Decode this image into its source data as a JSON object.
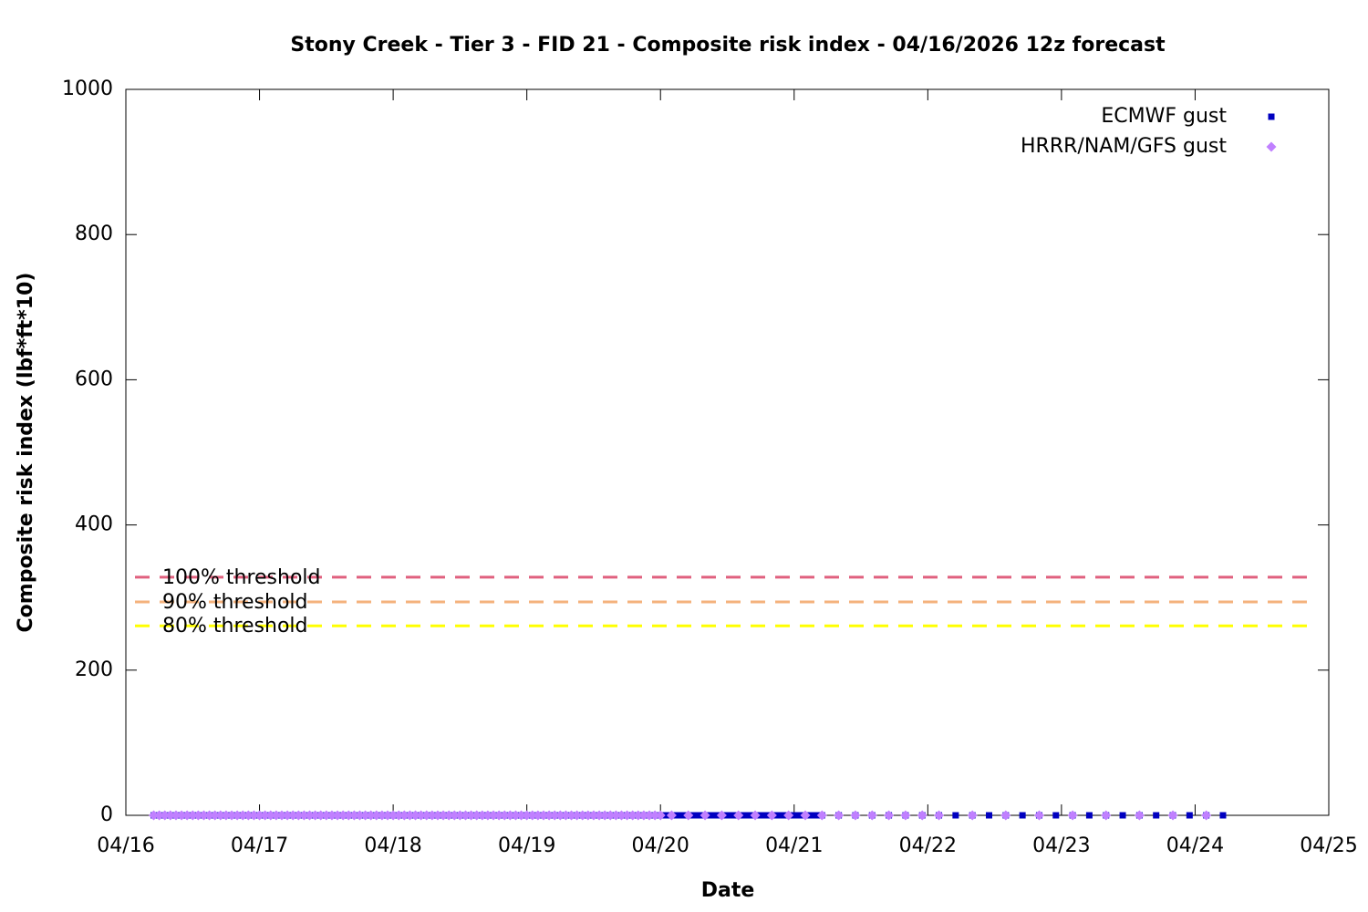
{
  "chart_data": {
    "type": "scatter",
    "title": "Stony Creek - Tier 3 - FID 21 - Composite risk index - 04/16/2026 12z forecast",
    "xlabel": "Date",
    "ylabel": "Composite risk index (lbf*ft*10)",
    "xlim": [
      0,
      216
    ],
    "xticks": [
      {
        "value": 0,
        "label": "04/16"
      },
      {
        "value": 24,
        "label": "04/17"
      },
      {
        "value": 48,
        "label": "04/18"
      },
      {
        "value": 72,
        "label": "04/19"
      },
      {
        "value": 96,
        "label": "04/20"
      },
      {
        "value": 120,
        "label": "04/21"
      },
      {
        "value": 144,
        "label": "04/22"
      },
      {
        "value": 168,
        "label": "04/23"
      },
      {
        "value": 192,
        "label": "04/24"
      },
      {
        "value": 216,
        "label": "04/25"
      }
    ],
    "ylim": [
      0,
      1000
    ],
    "yticks": [
      0,
      200,
      400,
      600,
      800,
      1000
    ],
    "legend": "upper right",
    "thresholds": [
      {
        "label": "100% threshold",
        "value": 328,
        "color": "#e0607e"
      },
      {
        "label": "90% threshold",
        "value": 294,
        "color": "#f4b27c"
      },
      {
        "label": "80% threshold",
        "value": 261,
        "color": "#ffff00"
      }
    ],
    "series": [
      {
        "name": "ECMWF gust",
        "color": "#0000c0",
        "marker": "square",
        "x": [
          5,
          6,
          7,
          8,
          9,
          10,
          11,
          12,
          13,
          14,
          15,
          16,
          17,
          18,
          19,
          20,
          21,
          22,
          23,
          24,
          25,
          26,
          27,
          28,
          29,
          30,
          31,
          32,
          33,
          34,
          35,
          36,
          37,
          38,
          39,
          40,
          41,
          42,
          43,
          44,
          45,
          46,
          47,
          48,
          49,
          50,
          51,
          52,
          53,
          54,
          55,
          56,
          57,
          58,
          59,
          60,
          61,
          62,
          63,
          64,
          65,
          66,
          67,
          68,
          69,
          70,
          71,
          72,
          73,
          74,
          75,
          76,
          77,
          78,
          79,
          80,
          81,
          82,
          83,
          84,
          85,
          86,
          87,
          88,
          89,
          90,
          91,
          92,
          93,
          94,
          95,
          96,
          97,
          98,
          99,
          100,
          101,
          102,
          103,
          104,
          105,
          106,
          107,
          108,
          109,
          110,
          111,
          112,
          113,
          114,
          115,
          116,
          117,
          118,
          119,
          120,
          121,
          122,
          123,
          124,
          125,
          128,
          131,
          134,
          137,
          140,
          143,
          146,
          149,
          152,
          155,
          158,
          161,
          164,
          167,
          170,
          173,
          176,
          179,
          182,
          185,
          188,
          191,
          194,
          197
        ],
        "values": [
          0,
          0,
          0,
          0,
          0,
          0,
          0,
          0,
          0,
          0,
          0,
          0,
          0,
          0,
          0,
          0,
          0,
          0,
          0,
          0,
          0,
          0,
          0,
          0,
          0,
          0,
          0,
          0,
          0,
          0,
          0,
          0,
          0,
          0,
          0,
          0,
          0,
          0,
          0,
          0,
          0,
          0,
          0,
          0,
          0,
          0,
          0,
          0,
          0,
          0,
          0,
          0,
          0,
          0,
          0,
          0,
          0,
          0,
          0,
          0,
          0,
          0,
          0,
          0,
          0,
          0,
          0,
          0,
          0,
          0,
          0,
          0,
          0,
          0,
          0,
          0,
          0,
          0,
          0,
          0,
          0,
          0,
          0,
          0,
          0,
          0,
          0,
          0,
          0,
          0,
          0,
          0,
          0,
          0,
          0,
          0,
          0,
          0,
          0,
          0,
          0,
          0,
          0,
          0,
          0,
          0,
          0,
          0,
          0,
          0,
          0,
          0,
          0,
          0,
          0,
          0,
          0,
          0,
          0,
          0,
          0,
          0,
          0,
          0,
          0,
          0,
          0,
          0,
          0,
          0,
          0,
          0,
          0,
          0,
          0,
          0,
          0,
          0,
          0,
          0,
          0,
          0,
          0,
          0,
          0
        ]
      },
      {
        "name": "HRRR/NAM/GFS gust",
        "color": "#c080ff",
        "marker": "diamond",
        "x": [
          5,
          6,
          7,
          8,
          9,
          10,
          11,
          12,
          13,
          14,
          15,
          16,
          17,
          18,
          19,
          20,
          21,
          22,
          23,
          24,
          25,
          26,
          27,
          28,
          29,
          30,
          31,
          32,
          33,
          34,
          35,
          36,
          37,
          38,
          39,
          40,
          41,
          42,
          43,
          44,
          45,
          46,
          47,
          48,
          49,
          50,
          51,
          52,
          53,
          54,
          55,
          56,
          57,
          58,
          59,
          60,
          61,
          62,
          63,
          64,
          65,
          66,
          67,
          68,
          69,
          70,
          71,
          72,
          73,
          74,
          75,
          76,
          77,
          78,
          79,
          80,
          81,
          82,
          83,
          84,
          85,
          86,
          87,
          88,
          89,
          90,
          91,
          92,
          93,
          94,
          95,
          96,
          98,
          101,
          104,
          107,
          110,
          113,
          116,
          119,
          122,
          125,
          128,
          131,
          134,
          137,
          140,
          143,
          146,
          152,
          158,
          164,
          170,
          176,
          182,
          188,
          194
        ],
        "values": [
          0,
          0,
          0,
          0,
          0,
          0,
          0,
          0,
          0,
          0,
          0,
          0,
          0,
          0,
          0,
          0,
          0,
          0,
          0,
          0,
          0,
          0,
          0,
          0,
          0,
          0,
          0,
          0,
          0,
          0,
          0,
          0,
          0,
          0,
          0,
          0,
          0,
          0,
          0,
          0,
          0,
          0,
          0,
          0,
          0,
          0,
          0,
          0,
          0,
          0,
          0,
          0,
          0,
          0,
          0,
          0,
          0,
          0,
          0,
          0,
          0,
          0,
          0,
          0,
          0,
          0,
          0,
          0,
          0,
          0,
          0,
          0,
          0,
          0,
          0,
          0,
          0,
          0,
          0,
          0,
          0,
          0,
          0,
          0,
          0,
          0,
          0,
          0,
          0,
          0,
          0,
          0,
          0,
          0,
          0,
          0,
          0,
          0,
          0,
          0,
          0,
          0,
          0,
          0,
          0,
          0,
          0,
          0,
          0,
          0,
          0,
          0,
          0,
          0,
          0,
          0,
          0
        ]
      }
    ]
  }
}
